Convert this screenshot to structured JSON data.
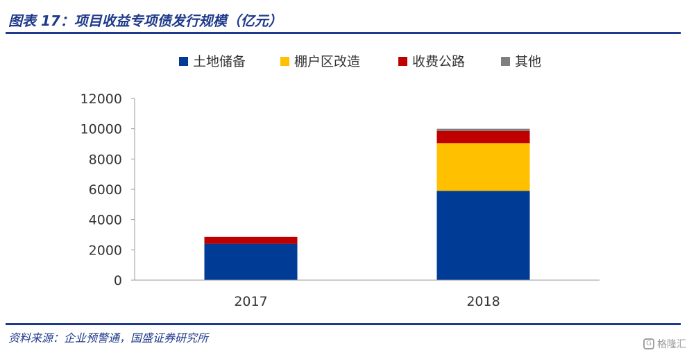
{
  "header": {
    "title": "图表 17：项目收益专项债发行规模（亿元）"
  },
  "footer": {
    "source": "资料来源：企业预警通，国盛证券研究所"
  },
  "watermark": {
    "text": "格隆汇",
    "icon": "G"
  },
  "chart_data": {
    "type": "bar",
    "stacked": true,
    "categories": [
      "2017",
      "2018"
    ],
    "series": [
      {
        "name": "土地储备",
        "color": "#003C96",
        "values": [
          2400,
          5900
        ]
      },
      {
        "name": "棚户区改造",
        "color": "#FFC000",
        "values": [
          0,
          3150
        ]
      },
      {
        "name": "收费公路",
        "color": "#C00000",
        "values": [
          450,
          800
        ]
      },
      {
        "name": "其他",
        "color": "#7F7F7F",
        "values": [
          0,
          150
        ]
      }
    ],
    "yticks": [
      "0",
      "2000",
      "4000",
      "6000",
      "8000",
      "10000",
      "12000"
    ],
    "ylim": [
      0,
      12000
    ],
    "legend_position": "top",
    "grid": false
  }
}
